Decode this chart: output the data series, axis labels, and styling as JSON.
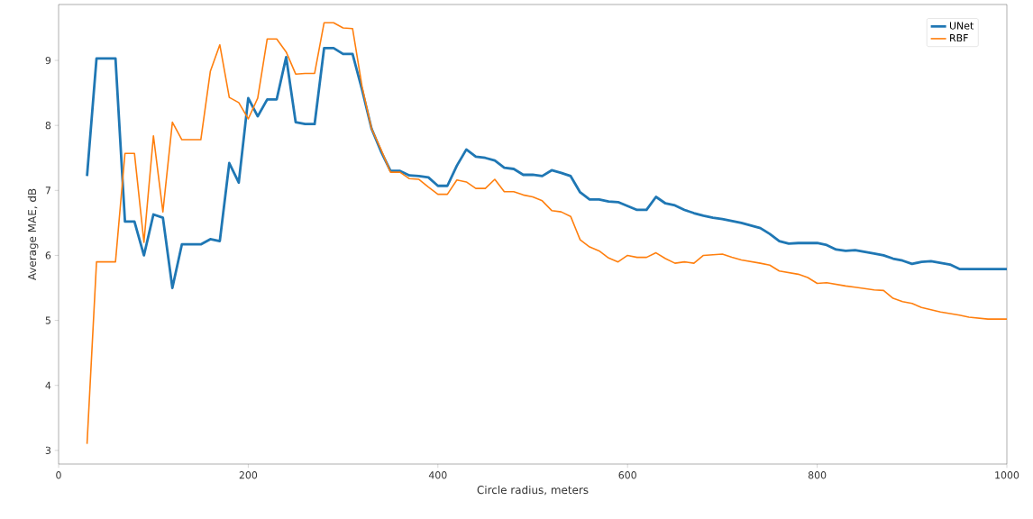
{
  "chart_data": {
    "type": "line",
    "xlabel": "Circle radius, meters",
    "ylabel": "Average MAE, dB",
    "xlim": [
      0,
      1000
    ],
    "ylim": [
      2.79,
      9.86
    ],
    "xticks": [
      0,
      200,
      400,
      600,
      800,
      1000
    ],
    "yticks": [
      3,
      4,
      5,
      6,
      7,
      8,
      9
    ],
    "legend": "top right",
    "grid": false,
    "series": [
      {
        "name": "UNet",
        "color": "#1f77b4",
        "x": [
          30,
          40,
          50,
          60,
          70,
          80,
          90,
          100,
          110,
          120,
          130,
          140,
          150,
          160,
          170,
          180,
          190,
          200,
          210,
          220,
          230,
          240,
          250,
          260,
          270,
          280,
          290,
          300,
          310,
          320,
          330,
          340,
          350,
          360,
          370,
          380,
          390,
          400,
          410,
          420,
          430,
          440,
          450,
          460,
          470,
          480,
          490,
          500,
          510,
          520,
          530,
          540,
          550,
          560,
          570,
          580,
          590,
          600,
          610,
          620,
          630,
          640,
          650,
          660,
          670,
          680,
          690,
          700,
          720,
          740,
          750,
          760,
          770,
          780,
          800,
          810,
          820,
          830,
          840,
          860,
          870,
          880,
          890,
          900,
          910,
          920,
          940,
          950,
          960,
          1000
        ],
        "values": [
          7.22,
          9.03,
          9.03,
          9.03,
          6.52,
          6.52,
          6.0,
          6.63,
          6.58,
          5.5,
          6.17,
          6.17,
          6.17,
          6.25,
          6.22,
          7.42,
          7.12,
          8.42,
          8.14,
          8.4,
          8.4,
          9.05,
          8.05,
          8.02,
          8.02,
          9.19,
          9.19,
          9.1,
          9.1,
          8.55,
          7.95,
          7.6,
          7.3,
          7.3,
          7.23,
          7.22,
          7.2,
          7.07,
          7.07,
          7.38,
          7.63,
          7.52,
          7.5,
          7.46,
          7.35,
          7.33,
          7.24,
          7.24,
          7.22,
          7.31,
          7.27,
          7.22,
          6.97,
          6.86,
          6.86,
          6.83,
          6.82,
          6.76,
          6.7,
          6.7,
          6.9,
          6.8,
          6.77,
          6.7,
          6.65,
          6.61,
          6.58,
          6.56,
          6.5,
          6.42,
          6.33,
          6.22,
          6.18,
          6.19,
          6.19,
          6.16,
          6.09,
          6.07,
          6.08,
          6.03,
          6.0,
          5.95,
          5.92,
          5.87,
          5.9,
          5.91,
          5.86,
          5.79,
          5.79,
          5.79
        ]
      },
      {
        "name": "RBF",
        "color": "#ff7f0e",
        "x": [
          30,
          40,
          50,
          60,
          70,
          80,
          90,
          100,
          110,
          120,
          130,
          140,
          150,
          160,
          170,
          180,
          190,
          200,
          210,
          220,
          230,
          240,
          250,
          260,
          270,
          280,
          290,
          300,
          310,
          320,
          330,
          340,
          350,
          360,
          370,
          380,
          390,
          400,
          410,
          420,
          430,
          440,
          450,
          460,
          470,
          480,
          490,
          500,
          510,
          520,
          530,
          540,
          550,
          560,
          570,
          580,
          590,
          600,
          610,
          620,
          630,
          640,
          650,
          660,
          670,
          680,
          690,
          700,
          710,
          720,
          740,
          750,
          760,
          780,
          790,
          800,
          810,
          830,
          840,
          860,
          870,
          880,
          890,
          900,
          910,
          930,
          950,
          960,
          980,
          1000
        ],
        "values": [
          3.1,
          5.9,
          5.9,
          5.9,
          7.57,
          7.57,
          6.2,
          7.84,
          6.67,
          8.05,
          7.78,
          7.78,
          7.78,
          8.83,
          9.24,
          8.43,
          8.35,
          8.1,
          8.42,
          9.33,
          9.33,
          9.13,
          8.79,
          8.8,
          8.8,
          9.58,
          9.58,
          9.5,
          9.49,
          8.6,
          7.95,
          7.63,
          7.28,
          7.28,
          7.18,
          7.17,
          7.05,
          6.94,
          6.94,
          7.16,
          7.13,
          7.03,
          7.03,
          7.17,
          6.98,
          6.98,
          6.93,
          6.9,
          6.84,
          6.69,
          6.67,
          6.6,
          6.24,
          6.13,
          6.07,
          5.96,
          5.9,
          6.0,
          5.97,
          5.97,
          6.04,
          5.95,
          5.88,
          5.9,
          5.88,
          6.0,
          6.01,
          6.02,
          5.97,
          5.93,
          5.88,
          5.85,
          5.76,
          5.71,
          5.66,
          5.57,
          5.58,
          5.53,
          5.51,
          5.47,
          5.46,
          5.34,
          5.29,
          5.26,
          5.2,
          5.13,
          5.08,
          5.05,
          5.02,
          5.02
        ]
      }
    ]
  }
}
